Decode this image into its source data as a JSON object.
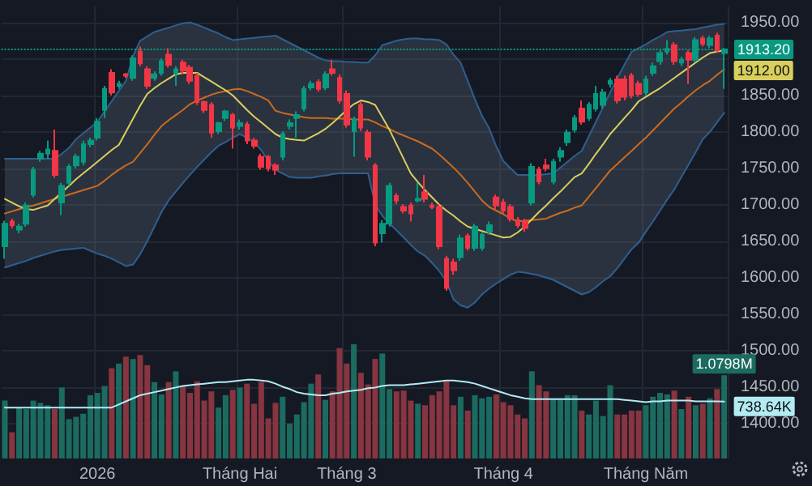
{
  "chart_data": {
    "type": "candlestick",
    "categories": [
      null,
      null,
      null,
      null,
      null,
      null,
      null,
      null,
      null,
      null,
      null,
      null,
      null,
      "2026",
      null,
      null,
      null,
      null,
      null,
      null,
      null,
      null,
      null,
      null,
      null,
      null,
      null,
      null,
      null,
      null,
      null,
      null,
      null,
      "Tháng Hai",
      null,
      null,
      null,
      null,
      null,
      null,
      null,
      null,
      null,
      null,
      null,
      null,
      null,
      null,
      "Tháng 3",
      null,
      null,
      null,
      null,
      null,
      null,
      null,
      null,
      null,
      null,
      null,
      null,
      null,
      null,
      null,
      null,
      null,
      null,
      null,
      null,
      null,
      "Tháng 4",
      null,
      null,
      null,
      null,
      null,
      null,
      null,
      null,
      null,
      null,
      null,
      null,
      null,
      null,
      null,
      null,
      null,
      null,
      null,
      "Tháng Năm",
      null,
      null,
      null,
      null,
      null,
      null,
      null,
      null,
      null,
      null,
      null
    ],
    "ylim": [
      1352,
      1972
    ],
    "yticks": [
      {
        "value": 1400,
        "label": "1400.00"
      },
      {
        "value": 1450,
        "label": "1450.00"
      },
      {
        "value": 1500,
        "label": "1500.00"
      },
      {
        "value": 1550,
        "label": "1550.00"
      },
      {
        "value": 1600,
        "label": "1600.00"
      },
      {
        "value": 1650,
        "label": "1650.00"
      },
      {
        "value": 1700,
        "label": "1700.00"
      },
      {
        "value": 1750,
        "label": "1750.00"
      },
      {
        "value": 1800,
        "label": "1800.00"
      },
      {
        "value": 1850,
        "label": "1850.00"
      },
      {
        "value": 1900,
        "label": null
      },
      {
        "value": 1950,
        "label": "1950.00"
      }
    ],
    "y2lim": [
      0,
      5860000
    ],
    "tick_labels": "xy",
    "grid": true,
    "marker": "none",
    "ref_lines": [
      {
        "axis": "y",
        "value": 1913.2,
        "label": "1913.20",
        "color": "#089981",
        "line_style": "dotted"
      }
    ],
    "series": [
      {
        "colors": [
          "#089981",
          "#f23645",
          "#089981",
          "#089981",
          "#089981",
          "#089981",
          "#089981",
          "#f23645",
          "#089981",
          "#089981",
          "#089981",
          "#089981",
          "#089981",
          "#089981",
          "#089981",
          "#f23645",
          "#089981",
          "#f23645",
          "#089981",
          "#f23645",
          "#f23645",
          "#089981",
          "#089981",
          "#f23645",
          "#089981",
          "#f23645",
          "#f23645",
          "#f23645",
          "#f23645",
          "#f23645",
          "#089981",
          "#089981",
          "#f23645",
          "#089981",
          "#f23645",
          "#f23645",
          "#f23645",
          "#f23645",
          "#f23645",
          "#089981",
          "#089981",
          "#089981",
          "#089981",
          "#089981",
          "#f23645",
          "#089981",
          "#f23645",
          "#f23645",
          "#f23645",
          "#089981",
          "#f23645",
          "#f23645",
          "#f23645",
          "#089981",
          "#089981",
          "#f23645",
          "#f23645",
          "#f23645",
          "#089981",
          "#f23645",
          "#f23645",
          "#f23645",
          "#f23645",
          "#f23645",
          "#089981",
          "#f23645",
          "#089981",
          "#089981",
          "#089981",
          "#f23645",
          "#f23645",
          "#f23645",
          "#f23645",
          "#f23645",
          "#089981",
          "#f23645",
          "#f23645",
          "#089981",
          "#089981",
          "#089981",
          "#089981",
          "#f23645",
          "#089981",
          "#089981",
          "#089981",
          "#089981",
          "#f23645",
          "#f23645",
          "#f23645",
          "#f23645",
          "#089981",
          "#089981",
          "#089981",
          "#089981",
          "#f23645",
          "#089981",
          "#f23645",
          "#089981",
          "#f23645",
          "#089981",
          "#f23645",
          "#089981"
        ],
        "ohlc": [
          [
            1643,
            1678,
            1626,
            1674
          ],
          [
            1677,
            1681,
            1668,
            1672
          ],
          [
            1666,
            1674,
            1661,
            1670
          ],
          [
            1674,
            1703,
            1670,
            1699
          ],
          [
            1714,
            1752,
            1710,
            1748
          ],
          [
            1763,
            1774,
            1759,
            1770
          ],
          [
            1770,
            1788,
            1763,
            1776
          ],
          [
            1774,
            1803,
            1737,
            1741
          ],
          [
            1703,
            1730,
            1686,
            1726
          ],
          [
            1730,
            1756,
            1726,
            1752
          ],
          [
            1754,
            1770,
            1750,
            1766
          ],
          [
            1759,
            1788,
            1754,
            1783
          ],
          [
            1783,
            1792,
            1779,
            1788
          ],
          [
            1792,
            1819,
            1788,
            1814
          ],
          [
            1830,
            1863,
            1819,
            1859
          ],
          [
            1881,
            1886,
            1850,
            1854
          ],
          [
            1863,
            1870,
            1859,
            1866
          ],
          [
            1879,
            1881,
            1874,
            1877
          ],
          [
            1874,
            1905,
            1870,
            1901
          ],
          [
            1910,
            1917,
            1890,
            1894
          ],
          [
            1886,
            1890,
            1859,
            1863
          ],
          [
            1874,
            1883,
            1870,
            1879
          ],
          [
            1881,
            1901,
            1877,
            1897
          ],
          [
            1906,
            1915,
            1888,
            1892
          ],
          [
            1881,
            1890,
            1863,
            1886
          ],
          [
            1895,
            1899,
            1879,
            1884
          ],
          [
            1888,
            1892,
            1866,
            1870
          ],
          [
            1877,
            1881,
            1837,
            1841
          ],
          [
            1841,
            1843,
            1826,
            1830
          ],
          [
            1837,
            1841,
            1792,
            1799
          ],
          [
            1801,
            1814,
            1797,
            1812
          ],
          [
            1819,
            1830,
            1815,
            1828
          ],
          [
            1823,
            1826,
            1777,
            1806
          ],
          [
            1808,
            1817,
            1803,
            1812
          ],
          [
            1810,
            1814,
            1783,
            1788
          ],
          [
            1788,
            1792,
            1777,
            1781
          ],
          [
            1766,
            1770,
            1748,
            1752
          ],
          [
            1766,
            1768,
            1746,
            1750
          ],
          [
            1754,
            1757,
            1741,
            1748
          ],
          [
            1766,
            1801,
            1761,
            1797
          ],
          [
            1808,
            1817,
            1803,
            1812
          ],
          [
            1819,
            1828,
            1792,
            1823
          ],
          [
            1832,
            1863,
            1828,
            1859
          ],
          [
            1861,
            1870,
            1857,
            1866
          ],
          [
            1868,
            1872,
            1855,
            1859
          ],
          [
            1861,
            1883,
            1857,
            1879
          ],
          [
            1886,
            1899,
            1877,
            1881
          ],
          [
            1874,
            1879,
            1839,
            1843
          ],
          [
            1852,
            1857,
            1806,
            1810
          ],
          [
            1801,
            1821,
            1766,
            1817
          ],
          [
            1837,
            1841,
            1801,
            1806
          ],
          [
            1799,
            1803,
            1761,
            1766
          ],
          [
            1754,
            1757,
            1643,
            1648
          ],
          [
            1661,
            1679,
            1648,
            1674
          ],
          [
            1674,
            1730,
            1670,
            1726
          ],
          [
            1712,
            1716,
            1701,
            1706
          ],
          [
            1697,
            1701,
            1688,
            1692
          ],
          [
            1699,
            1703,
            1677,
            1688
          ],
          [
            1706,
            1730,
            1703,
            1708
          ],
          [
            1717,
            1741,
            1703,
            1708
          ],
          [
            1699,
            1703,
            1694,
            1697
          ],
          [
            1697,
            1701,
            1639,
            1643
          ],
          [
            1626,
            1630,
            1582,
            1586
          ],
          [
            1621,
            1626,
            1604,
            1610
          ],
          [
            1628,
            1659,
            1623,
            1654
          ],
          [
            1657,
            1661,
            1637,
            1641
          ],
          [
            1641,
            1674,
            1637,
            1670
          ],
          [
            1641,
            1663,
            1637,
            1659
          ],
          [
            1663,
            1677,
            1659,
            1672
          ],
          [
            1710,
            1714,
            1694,
            1699
          ],
          [
            1703,
            1708,
            1688,
            1692
          ],
          [
            1697,
            1701,
            1677,
            1681
          ],
          [
            1679,
            1683,
            1668,
            1672
          ],
          [
            1677,
            1681,
            1663,
            1668
          ],
          [
            1703,
            1757,
            1699,
            1752
          ],
          [
            1748,
            1752,
            1728,
            1732
          ],
          [
            1754,
            1763,
            1746,
            1750
          ],
          [
            1732,
            1763,
            1728,
            1759
          ],
          [
            1766,
            1779,
            1759,
            1774
          ],
          [
            1786,
            1803,
            1781,
            1799
          ],
          [
            1803,
            1823,
            1799,
            1819
          ],
          [
            1832,
            1843,
            1810,
            1814
          ],
          [
            1819,
            1841,
            1815,
            1837
          ],
          [
            1832,
            1863,
            1828,
            1852
          ],
          [
            1837,
            1859,
            1832,
            1854
          ],
          [
            1866,
            1874,
            1861,
            1870
          ],
          [
            1872,
            1877,
            1839,
            1843
          ],
          [
            1872,
            1877,
            1843,
            1848
          ],
          [
            1877,
            1881,
            1846,
            1850
          ],
          [
            1866,
            1870,
            1848,
            1852
          ],
          [
            1854,
            1877,
            1850,
            1872
          ],
          [
            1881,
            1895,
            1877,
            1890
          ],
          [
            1897,
            1912,
            1892,
            1908
          ],
          [
            1910,
            1926,
            1906,
            1914
          ],
          [
            1919,
            1923,
            1892,
            1897
          ],
          [
            1895,
            1903,
            1890,
            1899
          ],
          [
            1908,
            1912,
            1866,
            1899
          ],
          [
            1899,
            1930,
            1895,
            1926
          ],
          [
            1928,
            1932,
            1917,
            1921
          ],
          [
            1919,
            1932,
            1915,
            1928
          ],
          [
            1932,
            1936,
            1908,
            1912
          ],
          [
            1908,
            1915,
            1859,
            1913.2
          ]
        ]
      },
      {
        "type": "line",
        "color": "#c96b1e",
        "values": [
          1688,
          1691,
          1694,
          1697,
          1699,
          1702,
          1705,
          1708,
          1711,
          1714,
          1717,
          1720,
          1723,
          1726,
          1733,
          1741,
          1748,
          1754,
          1759,
          1771,
          1783,
          1796,
          1808,
          1816,
          1823,
          1830,
          1838,
          1843,
          1847,
          1851,
          1854,
          1856,
          1858,
          1859,
          1856,
          1852,
          1848,
          1843,
          1829,
          1826,
          1824,
          1822,
          1820,
          1819,
          1819,
          1819,
          1818,
          1818,
          1818,
          1817,
          1817,
          1817,
          1813,
          1808,
          1804,
          1799,
          1795,
          1791,
          1787,
          1782,
          1777,
          1769,
          1760,
          1751,
          1741,
          1730,
          1718,
          1706,
          1697,
          1692,
          1687,
          1681,
          1677,
          1678,
          1679,
          1680,
          1681,
          1685,
          1689,
          1692,
          1696,
          1699,
          1711,
          1723,
          1735,
          1747,
          1756,
          1765,
          1774,
          1783,
          1792,
          1802,
          1812,
          1822,
          1832,
          1840,
          1849,
          1857,
          1864,
          1870,
          1878,
          1886
        ],
        "upper": [
          1763,
          1763,
          1763,
          1763,
          1763,
          1763,
          1763,
          1763,
          1770,
          1778,
          1790,
          1798,
          1806,
          1814,
          1828,
          1842,
          1856,
          1870,
          1904,
          1925,
          1931,
          1937,
          1940,
          1943,
          1946,
          1949,
          1950,
          1947,
          1943,
          1939,
          1935,
          1930,
          1926,
          1927,
          1928,
          1929,
          1930,
          1931,
          1932,
          1927,
          1922,
          1917,
          1912,
          1907,
          1902,
          1898,
          1897,
          1897,
          1896,
          1896,
          1895,
          1895,
          1905,
          1919,
          1922,
          1925,
          1927,
          1928,
          1928,
          1927,
          1927,
          1926,
          1920,
          1906,
          1895,
          1870,
          1845,
          1822,
          1805,
          1780,
          1760,
          1750,
          1741,
          1741,
          1741,
          1741,
          1742,
          1743,
          1751,
          1759,
          1767,
          1774,
          1794,
          1814,
          1834,
          1854,
          1874,
          1892,
          1910,
          1915,
          1920,
          1926,
          1931,
          1937,
          1938,
          1939,
          1940,
          1941,
          1943,
          1945,
          1947,
          1948
        ],
        "lower": [
          1614,
          1617,
          1620,
          1623,
          1627,
          1630,
          1633,
          1636,
          1638,
          1639,
          1640,
          1641,
          1637,
          1633,
          1630,
          1626,
          1621,
          1616,
          1618,
          1632,
          1650,
          1670,
          1690,
          1706,
          1718,
          1730,
          1741,
          1752,
          1762,
          1772,
          1781,
          1786,
          1792,
          1797,
          1792,
          1786,
          1775,
          1760,
          1748,
          1743,
          1738,
          1737,
          1737,
          1737,
          1739,
          1740,
          1742,
          1743,
          1743,
          1743,
          1743,
          1743,
          1700,
          1685,
          1674,
          1665,
          1655,
          1645,
          1636,
          1630,
          1620,
          1609,
          1595,
          1570,
          1562,
          1559,
          1566,
          1577,
          1585,
          1592,
          1598,
          1604,
          1608,
          1607,
          1605,
          1603,
          1600,
          1597,
          1592,
          1587,
          1582,
          1577,
          1580,
          1587,
          1595,
          1602,
          1613,
          1626,
          1639,
          1648,
          1663,
          1677,
          1692,
          1707,
          1721,
          1738,
          1755,
          1772,
          1790,
          1800,
          1813,
          1826
        ]
      },
      {
        "type": "line",
        "color": "#2f5f8f",
        "values": [
          1763,
          1763,
          1763,
          1763,
          1763,
          1763,
          1763,
          1763,
          1770,
          1778,
          1790,
          1798,
          1806,
          1814,
          1828,
          1842,
          1856,
          1870,
          1904,
          1925,
          1931,
          1937,
          1940,
          1943,
          1946,
          1949,
          1950,
          1947,
          1943,
          1939,
          1935,
          1930,
          1926,
          1927,
          1928,
          1929,
          1930,
          1931,
          1932,
          1927,
          1922,
          1917,
          1912,
          1907,
          1902,
          1898,
          1897,
          1897,
          1896,
          1896,
          1895,
          1895,
          1905,
          1919,
          1922,
          1925,
          1927,
          1928,
          1928,
          1927,
          1927,
          1926,
          1920,
          1906,
          1895,
          1870,
          1845,
          1822,
          1805,
          1780,
          1760,
          1750,
          1741,
          1741,
          1741,
          1741,
          1742,
          1743,
          1751,
          1759,
          1767,
          1774,
          1794,
          1814,
          1834,
          1854,
          1874,
          1892,
          1910,
          1915,
          1920,
          1926,
          1931,
          1937,
          1938,
          1939,
          1940,
          1941,
          1943,
          1945,
          1947,
          1948
        ]
      },
      {
        "type": "line",
        "color": "#2f5f8f",
        "values": [
          1614,
          1617,
          1620,
          1623,
          1627,
          1630,
          1633,
          1636,
          1638,
          1639,
          1640,
          1641,
          1637,
          1633,
          1630,
          1626,
          1621,
          1616,
          1618,
          1632,
          1650,
          1670,
          1690,
          1706,
          1718,
          1730,
          1741,
          1752,
          1762,
          1772,
          1781,
          1786,
          1792,
          1797,
          1792,
          1786,
          1775,
          1760,
          1748,
          1743,
          1738,
          1737,
          1737,
          1737,
          1739,
          1740,
          1742,
          1743,
          1743,
          1743,
          1743,
          1743,
          1700,
          1685,
          1674,
          1665,
          1655,
          1645,
          1636,
          1630,
          1620,
          1609,
          1595,
          1570,
          1562,
          1559,
          1566,
          1577,
          1585,
          1592,
          1598,
          1604,
          1608,
          1607,
          1605,
          1603,
          1600,
          1597,
          1592,
          1587,
          1582,
          1577,
          1580,
          1587,
          1595,
          1602,
          1613,
          1626,
          1639,
          1648,
          1663,
          1677,
          1692,
          1707,
          1721,
          1738,
          1755,
          1772,
          1790,
          1800,
          1813,
          1826
        ]
      },
      {
        "type": "line",
        "color": "#d9cf5c",
        "values": [
          1708,
          1703,
          1698,
          1694,
          1693,
          1696,
          1699,
          1708,
          1717,
          1726,
          1735,
          1743,
          1751,
          1759,
          1767,
          1775,
          1782,
          1800,
          1818,
          1836,
          1852,
          1860,
          1867,
          1873,
          1879,
          1881,
          1881,
          1881,
          1875,
          1869,
          1863,
          1857,
          1850,
          1840,
          1830,
          1821,
          1813,
          1805,
          1797,
          1792,
          1790,
          1789,
          1788,
          1793,
          1798,
          1804,
          1812,
          1821,
          1830,
          1838,
          1843,
          1841,
          1837,
          1820,
          1803,
          1783,
          1763,
          1743,
          1731,
          1720,
          1710,
          1700,
          1692,
          1685,
          1677,
          1670,
          1667,
          1664,
          1661,
          1658,
          1655,
          1656,
          1662,
          1670,
          1680,
          1690,
          1699,
          1709,
          1718,
          1728,
          1738,
          1743,
          1756,
          1770,
          1783,
          1797,
          1808,
          1819,
          1830,
          1842,
          1848,
          1854,
          1860,
          1867,
          1874,
          1881,
          1888,
          1895,
          1902,
          1908,
          1910,
          1912
        ],
        "value_labels": [
          null,
          null,
          null,
          null,
          null,
          null,
          null,
          null,
          null,
          null,
          null,
          null,
          null,
          null,
          null,
          null,
          null,
          null,
          null,
          null,
          null,
          null,
          null,
          null,
          null,
          null,
          null,
          null,
          null,
          null,
          null,
          null,
          null,
          null,
          null,
          null,
          null,
          null,
          null,
          null,
          null,
          null,
          null,
          null,
          null,
          null,
          null,
          null,
          null,
          null,
          null,
          null,
          null,
          null,
          null,
          null,
          null,
          null,
          null,
          null,
          null,
          null,
          null,
          null,
          null,
          null,
          null,
          null,
          null,
          null,
          null,
          null,
          null,
          null,
          null,
          null,
          null,
          null,
          null,
          null,
          null,
          null,
          null,
          null,
          null,
          null,
          null,
          null,
          null,
          null,
          null,
          null,
          null,
          null,
          null,
          null,
          null,
          null,
          null,
          null,
          null,
          "1912.00"
        ]
      },
      {
        "type": "bar",
        "axis": "y2",
        "colors": [
          "#1b6b60",
          "#873540",
          "#1b6b60",
          "#1b6b60",
          "#1b6b60",
          "#1b6b60",
          "#1b6b60",
          "#873540",
          "#1b6b60",
          "#1b6b60",
          "#1b6b60",
          "#1b6b60",
          "#1b6b60",
          "#1b6b60",
          "#1b6b60",
          "#873540",
          "#1b6b60",
          "#873540",
          "#1b6b60",
          "#873540",
          "#873540",
          "#1b6b60",
          "#1b6b60",
          "#873540",
          "#1b6b60",
          "#873540",
          "#873540",
          "#873540",
          "#873540",
          "#873540",
          "#1b6b60",
          "#1b6b60",
          "#873540",
          "#1b6b60",
          "#873540",
          "#873540",
          "#873540",
          "#873540",
          "#873540",
          "#1b6b60",
          "#1b6b60",
          "#1b6b60",
          "#1b6b60",
          "#1b6b60",
          "#873540",
          "#1b6b60",
          "#873540",
          "#873540",
          "#873540",
          "#1b6b60",
          "#873540",
          "#873540",
          "#873540",
          "#1b6b60",
          "#1b6b60",
          "#873540",
          "#873540",
          "#873540",
          "#1b6b60",
          "#873540",
          "#873540",
          "#873540",
          "#873540",
          "#873540",
          "#1b6b60",
          "#873540",
          "#1b6b60",
          "#1b6b60",
          "#1b6b60",
          "#873540",
          "#873540",
          "#873540",
          "#873540",
          "#873540",
          "#1b6b60",
          "#873540",
          "#873540",
          "#1b6b60",
          "#1b6b60",
          "#1b6b60",
          "#1b6b60",
          "#873540",
          "#1b6b60",
          "#1b6b60",
          "#1b6b60",
          "#1b6b60",
          "#873540",
          "#873540",
          "#873540",
          "#873540",
          "#1b6b60",
          "#1b6b60",
          "#1b6b60",
          "#1b6b60",
          "#873540",
          "#1b6b60",
          "#873540",
          "#1b6b60",
          "#873540",
          "#1b6b60",
          "#873540",
          "#1b6b60"
        ],
        "values": [
          750000,
          340000,
          660000,
          640000,
          750000,
          720000,
          690000,
          640000,
          920000,
          510000,
          540000,
          580000,
          820000,
          850000,
          940000,
          1170000,
          1230000,
          1320000,
          1290000,
          1340000,
          1210000,
          990000,
          830000,
          990000,
          1130000,
          940000,
          850000,
          1000000,
          750000,
          870000,
          660000,
          820000,
          890000,
          920000,
          970000,
          710000,
          990000,
          520000,
          720000,
          800000,
          450000,
          570000,
          730000,
          970000,
          1090000,
          760000,
          870000,
          1430000,
          1230000,
          1480000,
          1110000,
          960000,
          1290000,
          1360000,
          900000,
          870000,
          880000,
          750000,
          710000,
          690000,
          820000,
          870000,
          1000000,
          690000,
          800000,
          620000,
          820000,
          780000,
          800000,
          830000,
          730000,
          690000,
          570000,
          520000,
          1130000,
          950000,
          870000,
          780000,
          780000,
          820000,
          820000,
          620000,
          570000,
          750000,
          550000,
          950000,
          570000,
          570000,
          620000,
          620000,
          690000,
          800000,
          850000,
          830000,
          880000,
          640000,
          800000,
          690000,
          710000,
          780000,
          900000,
          1079800
        ],
        "value_labels": [
          null,
          null,
          null,
          null,
          null,
          null,
          null,
          null,
          null,
          null,
          null,
          null,
          null,
          null,
          null,
          null,
          null,
          null,
          null,
          null,
          null,
          null,
          null,
          null,
          null,
          null,
          null,
          null,
          null,
          null,
          null,
          null,
          null,
          null,
          null,
          null,
          null,
          null,
          null,
          null,
          null,
          null,
          null,
          null,
          null,
          null,
          null,
          null,
          null,
          null,
          null,
          null,
          null,
          null,
          null,
          null,
          null,
          null,
          null,
          null,
          null,
          null,
          null,
          null,
          null,
          null,
          null,
          null,
          null,
          null,
          null,
          null,
          null,
          null,
          null,
          null,
          null,
          null,
          null,
          null,
          null,
          null,
          null,
          null,
          null,
          null,
          null,
          null,
          null,
          null,
          null,
          null,
          null,
          null,
          null,
          null,
          null,
          null,
          null,
          null,
          null,
          "1.0798M"
        ]
      },
      {
        "type": "line",
        "axis": "y2",
        "color": "#b2ebf2",
        "values": [
          660000,
          660000,
          660000,
          660000,
          660000,
          660000,
          660000,
          660000,
          660000,
          660000,
          660000,
          660000,
          660000,
          660000,
          660000,
          660000,
          700000,
          740000,
          780000,
          820000,
          840000,
          860000,
          880000,
          900000,
          920000,
          940000,
          950000,
          960000,
          970000,
          980000,
          990000,
          990000,
          1000000,
          1010000,
          1020000,
          1020000,
          1010000,
          1000000,
          970000,
          930000,
          900000,
          860000,
          840000,
          830000,
          820000,
          820000,
          840000,
          850000,
          870000,
          880000,
          890000,
          910000,
          920000,
          940000,
          950000,
          950000,
          950000,
          960000,
          970000,
          980000,
          990000,
          1000000,
          1010000,
          1010000,
          1000000,
          990000,
          970000,
          940000,
          910000,
          880000,
          850000,
          820000,
          800000,
          780000,
          770000,
          770000,
          770000,
          770000,
          770000,
          770000,
          770000,
          770000,
          770000,
          770000,
          770000,
          770000,
          770000,
          760000,
          750000,
          740000,
          730000,
          740000,
          740000,
          750000,
          750000,
          750000,
          750000,
          740000,
          740000,
          740000,
          740000,
          738640
        ],
        "value_labels": [
          null,
          null,
          null,
          null,
          null,
          null,
          null,
          null,
          null,
          null,
          null,
          null,
          null,
          null,
          null,
          null,
          null,
          null,
          null,
          null,
          null,
          null,
          null,
          null,
          null,
          null,
          null,
          null,
          null,
          null,
          null,
          null,
          null,
          null,
          null,
          null,
          null,
          null,
          null,
          null,
          null,
          null,
          null,
          null,
          null,
          null,
          null,
          null,
          null,
          null,
          null,
          null,
          null,
          null,
          null,
          null,
          null,
          null,
          null,
          null,
          null,
          null,
          null,
          null,
          null,
          null,
          null,
          null,
          null,
          null,
          null,
          null,
          null,
          null,
          null,
          null,
          null,
          null,
          null,
          null,
          null,
          null,
          null,
          null,
          null,
          null,
          null,
          null,
          null,
          null,
          null,
          null,
          null,
          null,
          null,
          null,
          null,
          null,
          null,
          null,
          null,
          "738.64K"
        ]
      }
    ]
  }
}
